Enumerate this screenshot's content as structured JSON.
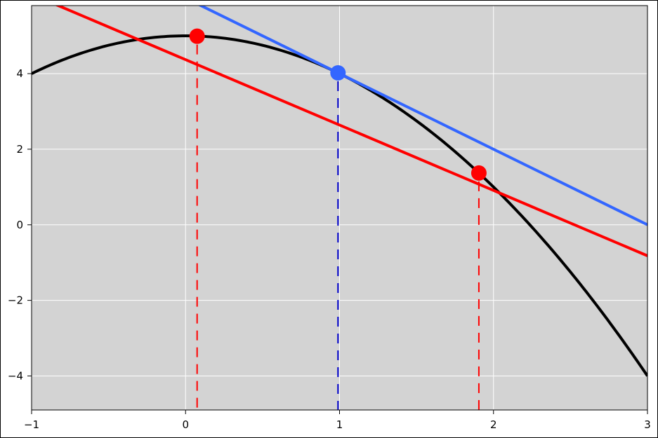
{
  "chart_data": {
    "type": "line",
    "title": "",
    "xlabel": "",
    "ylabel": "",
    "xlim": [
      -1,
      3
    ],
    "ylim": [
      -4.9,
      5.8
    ],
    "grid": true,
    "x_ticks": [
      -1,
      0,
      1,
      2,
      3
    ],
    "y_ticks": [
      -4,
      -2,
      0,
      2,
      4
    ],
    "x_tick_labels": [
      "−1",
      "0",
      "1",
      "2",
      "3"
    ],
    "y_tick_labels": [
      "−4",
      "−2",
      "0",
      "2",
      "4"
    ],
    "series": [
      {
        "kind": "curve",
        "color": "#000000",
        "x": [
          -1,
          -0.5,
          0,
          0.5,
          1,
          1.5,
          2,
          2.5,
          3
        ],
        "y": [
          4,
          4.75,
          5,
          4.75,
          4,
          2.75,
          1,
          -1.25,
          -4
        ]
      },
      {
        "kind": "tangent-line",
        "color": "#3366ff",
        "x": [
          -1,
          3
        ],
        "y": [
          8,
          0
        ]
      },
      {
        "kind": "secant-line",
        "color": "#ff0000",
        "x": [
          -1,
          3
        ],
        "y": [
          6.1,
          -0.82
        ]
      }
    ],
    "points": [
      {
        "x": 0.075,
        "y": 4.99,
        "color": "#ff0000"
      },
      {
        "x": 0.99,
        "y": 4.02,
        "color": "#3366ff"
      },
      {
        "x": 1.905,
        "y": 1.37,
        "color": "#ff0000"
      }
    ],
    "drop_lines": [
      {
        "x": 0.075,
        "y_top": 4.99,
        "color": "#ff0000"
      },
      {
        "x": 0.99,
        "y_top": 4.02,
        "color": "#0000cc"
      },
      {
        "x": 1.905,
        "y_top": 1.37,
        "color": "#ff0000"
      }
    ],
    "colors": {
      "plot_background": "#d3d3d3",
      "grid": "#ffffff"
    }
  }
}
